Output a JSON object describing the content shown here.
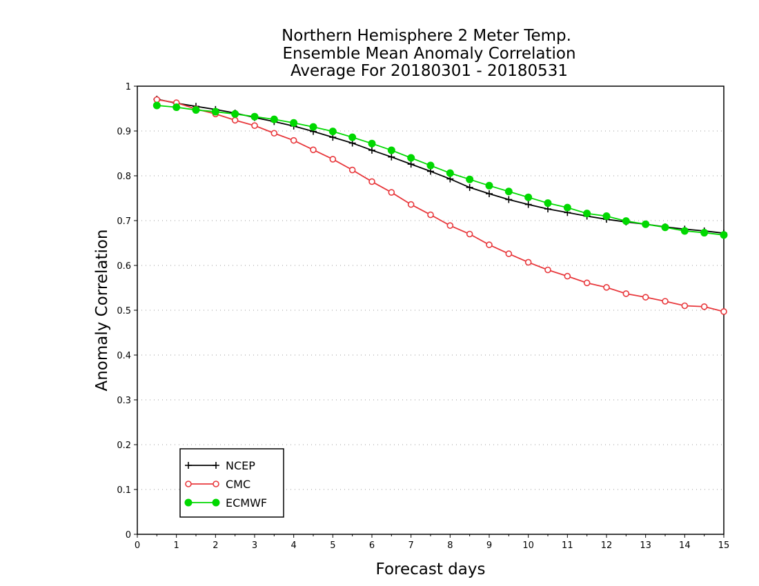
{
  "chart_data": {
    "type": "line",
    "title_lines": [
      "Northern Hemisphere 2 Meter Temp.",
      "Ensemble Mean Anomaly Correlation",
      "Average For 20180301 - 20180531"
    ],
    "xlabel": "Forecast days",
    "ylabel": "Anomaly Correlation",
    "xlim": [
      0,
      15
    ],
    "ylim": [
      0,
      1
    ],
    "xticks": [
      "0",
      "1",
      "2",
      "3",
      "4",
      "5",
      "6",
      "7",
      "8",
      "9",
      "10",
      "11",
      "12",
      "13",
      "14",
      "15"
    ],
    "yticks": [
      "0",
      "0.1",
      "0.2",
      "0.3",
      "0.4",
      "0.5",
      "0.6",
      "0.7",
      "0.8",
      "0.9",
      "1"
    ],
    "grid": "dotted horizontal",
    "legend_position": "bottom-left",
    "x": [
      0.5,
      1,
      1.5,
      2,
      2.5,
      3,
      3.5,
      4,
      4.5,
      5,
      5.5,
      6,
      6.5,
      7,
      7.5,
      8,
      8.5,
      9,
      9.5,
      10,
      10.5,
      11,
      11.5,
      12,
      12.5,
      13,
      13.5,
      14,
      14.5,
      15
    ],
    "series": [
      {
        "name": "NCEP",
        "color": "#000000",
        "marker": "plus",
        "values": [
          0.971,
          0.962,
          0.955,
          0.948,
          0.94,
          0.93,
          0.921,
          0.911,
          0.899,
          0.886,
          0.873,
          0.857,
          0.842,
          0.826,
          0.81,
          0.793,
          0.774,
          0.76,
          0.747,
          0.736,
          0.726,
          0.718,
          0.71,
          0.703,
          0.697,
          0.692,
          0.686,
          0.681,
          0.677,
          0.672
        ]
      },
      {
        "name": "CMC",
        "color": "#e8373b",
        "marker": "open-circle",
        "values": [
          0.97,
          0.963,
          0.949,
          0.938,
          0.924,
          0.912,
          0.895,
          0.879,
          0.858,
          0.837,
          0.813,
          0.787,
          0.763,
          0.736,
          0.713,
          0.689,
          0.67,
          0.646,
          0.626,
          0.607,
          0.59,
          0.576,
          0.561,
          0.551,
          0.537,
          0.529,
          0.52,
          0.51,
          0.508,
          0.497
        ]
      },
      {
        "name": "ECMWF",
        "color": "#00d800",
        "marker": "filled-circle",
        "values": [
          0.957,
          0.953,
          0.947,
          0.943,
          0.938,
          0.932,
          0.926,
          0.918,
          0.909,
          0.899,
          0.886,
          0.872,
          0.857,
          0.84,
          0.823,
          0.806,
          0.792,
          0.778,
          0.765,
          0.752,
          0.739,
          0.729,
          0.716,
          0.71,
          0.699,
          0.692,
          0.685,
          0.677,
          0.673,
          0.668
        ]
      }
    ]
  }
}
